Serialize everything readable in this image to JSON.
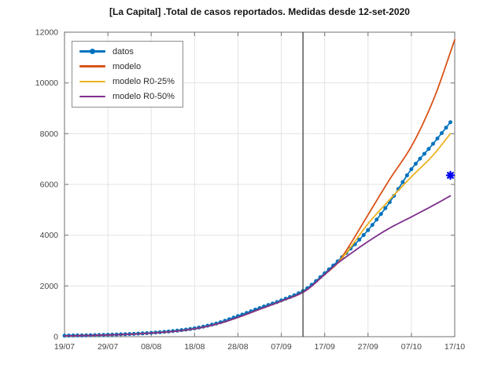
{
  "title": "[La Capital] .Total de casos reportados. Medidas desde 12-set-2020",
  "chart_data": {
    "type": "line",
    "title": "[La Capital] .Total de casos reportados. Medidas desde 12-set-2020",
    "xlabel": "",
    "ylabel": "",
    "grid": true,
    "legend_position": "top-left",
    "x_axis": {
      "unit": "date",
      "start_label": "19/07",
      "end_label": "17/10",
      "range_days": [
        0,
        90
      ],
      "tick_days": [
        0,
        10,
        20,
        30,
        40,
        50,
        60,
        70,
        80,
        90
      ],
      "tick_labels": [
        "19/07",
        "29/07",
        "08/08",
        "18/08",
        "28/08",
        "07/09",
        "17/09",
        "27/09",
        "07/10",
        "17/10"
      ]
    },
    "y_axis": {
      "range": [
        0,
        12000
      ],
      "tick_values": [
        0,
        2000,
        4000,
        6000,
        8000,
        10000,
        12000
      ],
      "tick_labels": [
        "0",
        "2000",
        "4000",
        "6000",
        "8000",
        "10000",
        "12000"
      ]
    },
    "series": [
      {
        "name": "datos",
        "color": "#0072BD",
        "marker": "circle",
        "line_width": 1.7,
        "days": [
          0,
          5,
          10,
          15,
          20,
          25,
          30,
          35,
          40,
          45,
          50,
          55,
          60,
          65,
          70,
          75,
          80,
          85,
          89
        ],
        "values": [
          40,
          55,
          75,
          105,
          150,
          220,
          330,
          520,
          810,
          1130,
          1430,
          1800,
          2500,
          3300,
          4200,
          5300,
          6600,
          7600,
          8450
        ]
      },
      {
        "name": "modelo",
        "color": "#D95319",
        "marker": "none",
        "line_width": 1.8,
        "days": [
          0,
          5,
          10,
          15,
          20,
          25,
          30,
          35,
          40,
          45,
          50,
          55,
          60,
          63,
          65,
          70,
          75,
          80,
          85,
          90
        ],
        "values": [
          30,
          45,
          65,
          95,
          140,
          205,
          310,
          490,
          760,
          1080,
          1400,
          1750,
          2450,
          2900,
          3400,
          4800,
          6200,
          7500,
          9300,
          11700
        ]
      },
      {
        "name": "modelo R0-25%",
        "color": "#EDB120",
        "marker": "none",
        "line_width": 1.8,
        "days": [
          0,
          5,
          10,
          15,
          20,
          25,
          30,
          35,
          40,
          45,
          50,
          55,
          60,
          63,
          65,
          70,
          75,
          80,
          85,
          89
        ],
        "values": [
          30,
          45,
          65,
          95,
          140,
          205,
          310,
          490,
          760,
          1080,
          1400,
          1750,
          2450,
          2900,
          3300,
          4450,
          5400,
          6300,
          7150,
          8000
        ]
      },
      {
        "name": "modelo R0-50%",
        "color": "#7E2F8E",
        "marker": "none",
        "line_width": 1.8,
        "days": [
          0,
          5,
          10,
          15,
          20,
          25,
          30,
          35,
          40,
          45,
          50,
          55,
          60,
          63,
          65,
          70,
          75,
          80,
          85,
          89
        ],
        "values": [
          30,
          45,
          65,
          95,
          140,
          205,
          310,
          490,
          760,
          1080,
          1400,
          1750,
          2450,
          2900,
          3150,
          3750,
          4280,
          4720,
          5170,
          5550
        ]
      }
    ],
    "event_line": {
      "day": 55,
      "tick_date": "12/09",
      "color": "#3f3f3f"
    },
    "special_marker": {
      "shape": "asterisk",
      "color": "#0006f0",
      "day": 89,
      "value": 6360
    },
    "style": {
      "axis_color": "#7d7d7d",
      "grid_color": "#e3e3e3",
      "tick_label_color": "#474747",
      "background": "#ffffff"
    }
  }
}
